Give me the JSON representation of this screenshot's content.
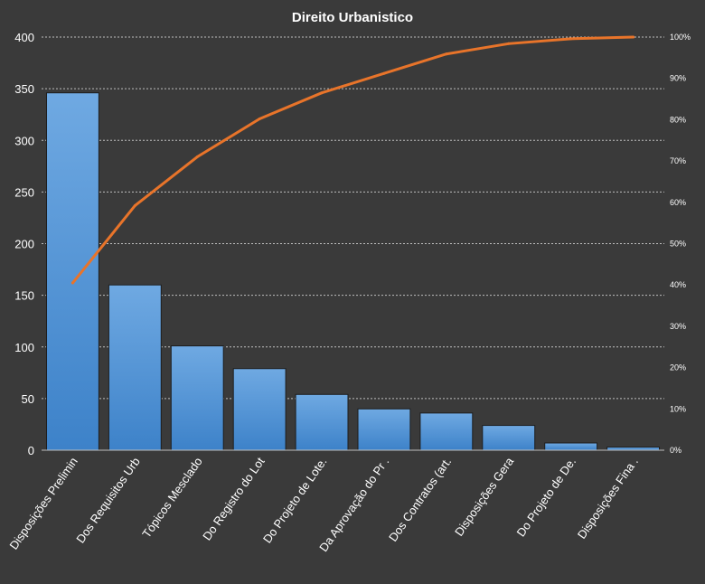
{
  "chart_data": {
    "type": "bar",
    "title": "Direito  Urbanistico",
    "categories": [
      "Disposições Prelimin",
      "Dos Requisitos Urb",
      "Tópicos Mesclado",
      "Do Registro do Lot",
      "Do Projeto de Lote.",
      "Da Aprovação do Pr .",
      "Dos Contratos (art.",
      "Disposições Gera",
      "Do Projeto de De.",
      "Disposições Fina ."
    ],
    "series": [
      {
        "type": "bar",
        "values": [
          346,
          160,
          101,
          79,
          54,
          40,
          36,
          24,
          7,
          3
        ]
      },
      {
        "type": "line",
        "axis": "secondary",
        "values": [
          40.5,
          59.2,
          71.0,
          80.2,
          86.5,
          91.2,
          95.9,
          98.4,
          99.6,
          100
        ]
      }
    ],
    "ylim": [
      0,
      400
    ],
    "yticks": [
      "0",
      "50",
      "100",
      "150",
      "200",
      "250",
      "300",
      "350",
      "400"
    ],
    "y2lim": [
      0,
      100
    ],
    "y2ticks": [
      "0%",
      "10%",
      "20%",
      "30%",
      "40%",
      "50%",
      "60%",
      "70%",
      "80%",
      "90%",
      "100%"
    ],
    "grid": true,
    "colors": {
      "background": "#3a3a3a",
      "bar_top": "#6fa9e2",
      "bar_bottom": "#3d82c9",
      "line": "#e8742a",
      "grid": "#bfbfbf",
      "text": "#ffffff"
    }
  }
}
